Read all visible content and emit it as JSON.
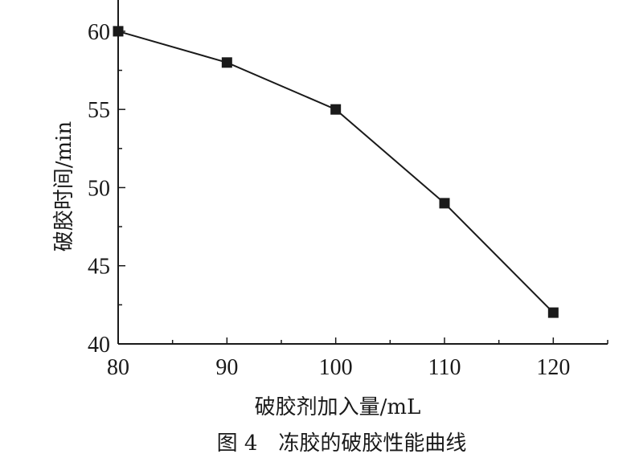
{
  "chart_data": {
    "type": "line",
    "x": [
      80,
      90,
      100,
      110,
      120
    ],
    "series": [
      {
        "values": [
          60,
          58,
          55,
          49,
          42
        ],
        "marker": "square",
        "color": "#1a1a1a"
      }
    ],
    "xlabel": "破胶剂加入量/mL",
    "ylabel": "破胶时间/min",
    "xlim": [
      80,
      125
    ],
    "ylim": [
      40,
      62
    ],
    "xticks": [
      80,
      90,
      100,
      110,
      120
    ],
    "yticks": [
      40,
      45,
      50,
      55,
      60
    ],
    "grid": false
  },
  "caption": "图 4　冻胶的破胶性能曲线"
}
